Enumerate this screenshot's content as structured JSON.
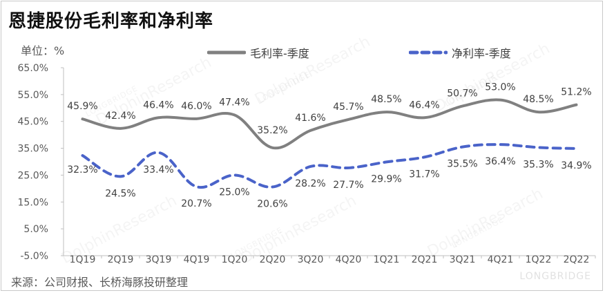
{
  "title": "恩捷股份毛利率和净利率",
  "unit_label": "单位：%",
  "source": "来源：公司财报、长桥海豚投研整理",
  "watermark": {
    "text": "DolphinResearch",
    "small": "LONGBRIDGE",
    "brand": "LONGBRIDGE"
  },
  "colors": {
    "gross": "#808080",
    "net": "#4a63c9",
    "axis": "#bfbfbf"
  },
  "chart_data": {
    "type": "line",
    "categories": [
      "1Q19",
      "2Q19",
      "3Q19",
      "4Q19",
      "1Q20",
      "2Q20",
      "3Q20",
      "4Q20",
      "1Q21",
      "2Q21",
      "3Q21",
      "4Q21",
      "1Q22",
      "2Q22"
    ],
    "series": [
      {
        "name": "毛利率-季度",
        "style": "solid",
        "values": [
          45.9,
          42.4,
          46.4,
          46.0,
          47.4,
          35.2,
          41.6,
          45.7,
          48.5,
          46.4,
          50.7,
          53.0,
          48.5,
          51.2
        ],
        "labels": [
          "45.9%",
          "42.4%",
          "46.4%",
          "46.0%",
          "47.4%",
          "35.2%",
          "41.6%",
          "45.7%",
          "48.5%",
          "46.4%",
          "50.7%",
          "53.0%",
          "48.5%",
          "51.2%"
        ]
      },
      {
        "name": "净利率-季度",
        "style": "dashed",
        "values": [
          32.3,
          24.5,
          33.4,
          20.7,
          25.0,
          20.6,
          28.2,
          27.7,
          29.9,
          31.7,
          35.5,
          36.4,
          35.3,
          34.9
        ],
        "labels": [
          "32.3%",
          "24.5%",
          "33.4%",
          "20.7%",
          "25.0%",
          "20.6%",
          "28.2%",
          "27.7%",
          "29.9%",
          "31.7%",
          "35.5%",
          "36.4%",
          "35.3%",
          "34.9%"
        ]
      }
    ],
    "y_ticks": [
      "65.0%",
      "55.0%",
      "45.0%",
      "35.0%",
      "25.0%",
      "15.0%",
      "5.0%",
      "-5.0%"
    ],
    "ylim": [
      -5,
      65
    ],
    "grid": false,
    "legend_position": "top"
  }
}
